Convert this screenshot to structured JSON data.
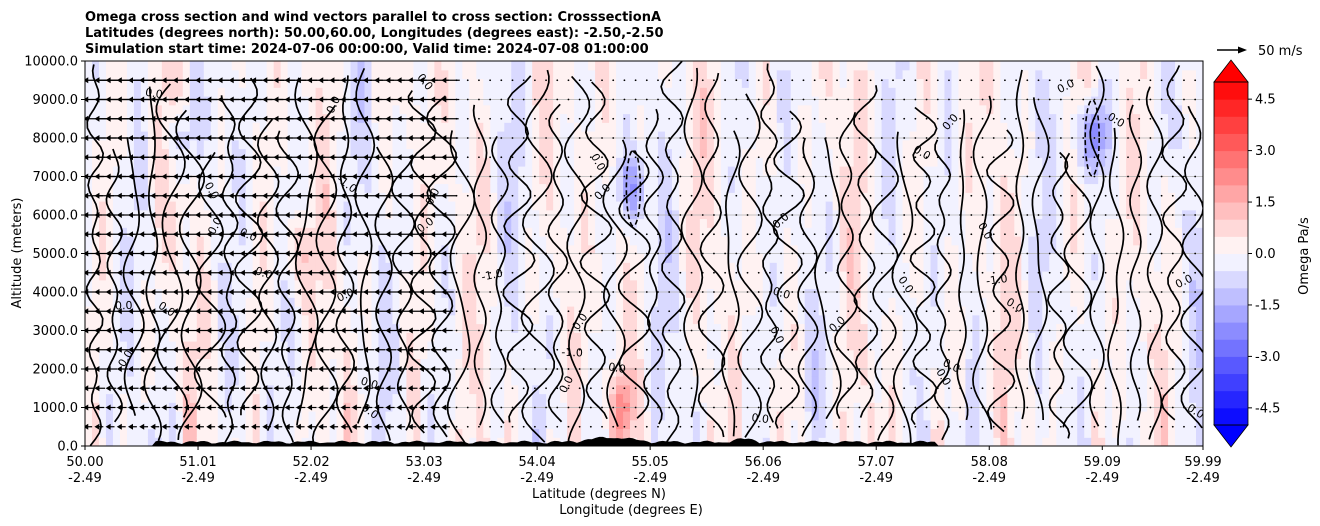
{
  "chart_data": {
    "type": "contour",
    "title": [
      "Omega cross section and wind vectors parallel to cross section: CrosssectionA",
      "Latitudes (degrees north): 50.00,60.00, Longitudes (degrees east): -2.50,-2.50",
      "Simulation start time: 2024-07-06 00:00:00, Valid time: 2024-07-08 01:00:00"
    ],
    "ylabel": "Altitude (meters)",
    "xlabel_lines": [
      "Latitude (degrees N)",
      "Longitude (degrees E)"
    ],
    "ylim": [
      0,
      10000
    ],
    "xlim": [
      50.0,
      59.99
    ],
    "y_ticks": [
      "0.0",
      "1000.0",
      "2000.0",
      "3000.0",
      "4000.0",
      "5000.0",
      "6000.0",
      "7000.0",
      "8000.0",
      "9000.0",
      "10000.0"
    ],
    "y_tick_values": [
      0,
      1000,
      2000,
      3000,
      4000,
      5000,
      6000,
      7000,
      8000,
      9000,
      10000
    ],
    "x_ticks": [
      {
        "lat": "50.00",
        "lon": "-2.49"
      },
      {
        "lat": "51.01",
        "lon": "-2.49"
      },
      {
        "lat": "52.02",
        "lon": "-2.49"
      },
      {
        "lat": "53.03",
        "lon": "-2.49"
      },
      {
        "lat": "54.04",
        "lon": "-2.49"
      },
      {
        "lat": "55.05",
        "lon": "-2.49"
      },
      {
        "lat": "56.06",
        "lon": "-2.49"
      },
      {
        "lat": "57.07",
        "lon": "-2.49"
      },
      {
        "lat": "58.08",
        "lon": "-2.49"
      },
      {
        "lat": "59.09",
        "lon": "-2.49"
      },
      {
        "lat": "59.99",
        "lon": "-2.49"
      }
    ],
    "x_tick_values": [
      50.0,
      51.01,
      52.02,
      53.03,
      54.04,
      55.05,
      56.06,
      57.07,
      58.08,
      59.09,
      59.99
    ],
    "grid": true,
    "colorbar": {
      "label": "Omega Pa/s",
      "range": [
        -5.0,
        5.0
      ],
      "ticks": [
        "-4.5",
        "-3.0",
        "-1.5",
        "0.0",
        "1.5",
        "3.0",
        "4.5"
      ],
      "tick_values": [
        -4.5,
        -3.0,
        -1.5,
        0.0,
        1.5,
        3.0,
        4.5
      ],
      "levels": 20,
      "extend": "both",
      "colormap": "bwr",
      "positive_color": "#ff0000",
      "negative_color": "#0000ff"
    },
    "quiver_key": {
      "label": "50 m/s",
      "value": 50
    },
    "contour_labels": [
      "0.0",
      "-1.0"
    ],
    "features": [
      {
        "name": "strong descending (blue) core near 55.0N, 6000-7500 m",
        "lat": 54.9,
        "alt": 6700,
        "omega": -1.5
      },
      {
        "name": "strong descending (blue) core near 59.0N, 7500-8500 m",
        "lat": 59.0,
        "alt": 8000,
        "omega": -2.0
      },
      {
        "name": "descending column near 51.0N upper levels",
        "lat": 50.85,
        "alt": 8000,
        "omega": -0.8
      },
      {
        "name": "ascending column near 51.9N",
        "lat": 51.9,
        "alt": 5000,
        "omega": 0.8
      },
      {
        "name": "strong ascending near surface 55.0N",
        "lat": 54.8,
        "alt": 1000,
        "omega": 1.5
      }
    ],
    "wind_vector_band": {
      "lat_range": [
        50.0,
        53.3
      ],
      "direction": "left",
      "max_speed_ms": 50
    }
  },
  "colors": {
    "background": "#ffffff",
    "contour": "#000000",
    "terrain": "#000000",
    "grid": "#b0b0b0"
  }
}
